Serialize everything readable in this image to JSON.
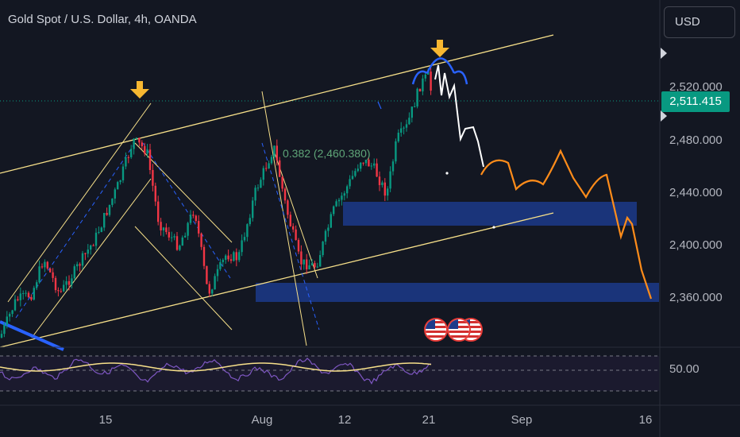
{
  "header": {
    "symbol_title": "Gold Spot / U.S. Dollar, 4h, OANDA",
    "currency_label": "USD"
  },
  "price_scale": {
    "labels": [
      "2,520.000",
      "2,480.000",
      "2,440.000",
      "2,400.000",
      "2,360.000"
    ],
    "current_price": "2,511.415",
    "current_price_color": "#089981"
  },
  "time_scale": {
    "labels": [
      "15",
      "Aug",
      "12",
      "21",
      "Sep",
      "16"
    ]
  },
  "annotations": {
    "fib_label": "0.382 (2,460.380)"
  },
  "rsi": {
    "level_label": "50.00"
  },
  "events": {
    "flags": [
      "us-flag-icon",
      "us-flag-icon",
      "us-flag-icon"
    ]
  },
  "colors": {
    "background": "#131722",
    "up_candle": "#089981",
    "down_candle": "#f23645",
    "channel_lines": "#f7e08a",
    "zone_fill": "#1c3a8a",
    "forecast_white": "#ffffff",
    "forecast_orange": "#ff8c1a",
    "marker_arrow": "#f7b731"
  }
}
